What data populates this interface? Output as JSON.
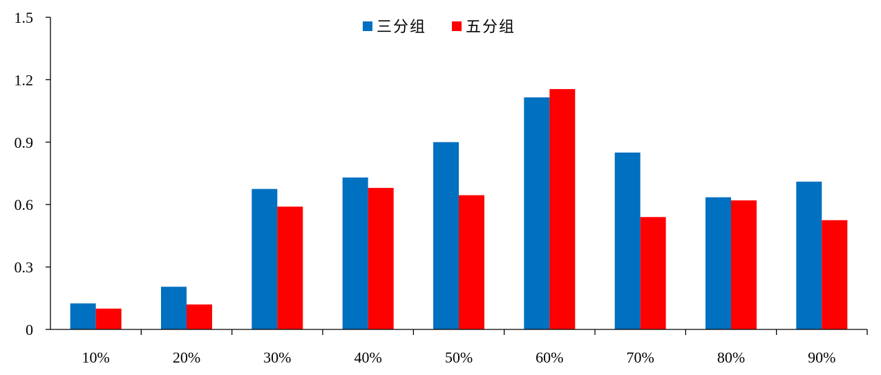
{
  "chart_data": {
    "type": "bar",
    "categories": [
      "10%",
      "20%",
      "30%",
      "40%",
      "50%",
      "60%",
      "70%",
      "80%",
      "90%"
    ],
    "series": [
      {
        "name": "三分组",
        "color": "#0070C0",
        "values": [
          0.125,
          0.205,
          0.675,
          0.73,
          0.9,
          1.115,
          0.85,
          0.635,
          0.71
        ]
      },
      {
        "name": "五分组",
        "color": "#FF0000",
        "values": [
          0.1,
          0.12,
          0.59,
          0.68,
          0.645,
          1.155,
          0.54,
          0.62,
          0.525
        ]
      }
    ],
    "title": "",
    "xlabel": "",
    "ylabel": "",
    "ylim": [
      0,
      1.5
    ],
    "yticks": [
      "0",
      "0.3",
      "0.6",
      "0.9",
      "1.2",
      "1.5"
    ],
    "ytick_values": [
      0,
      0.3,
      0.6,
      0.9,
      1.2,
      1.5
    ],
    "grid": false,
    "legend_position": "top-center"
  }
}
